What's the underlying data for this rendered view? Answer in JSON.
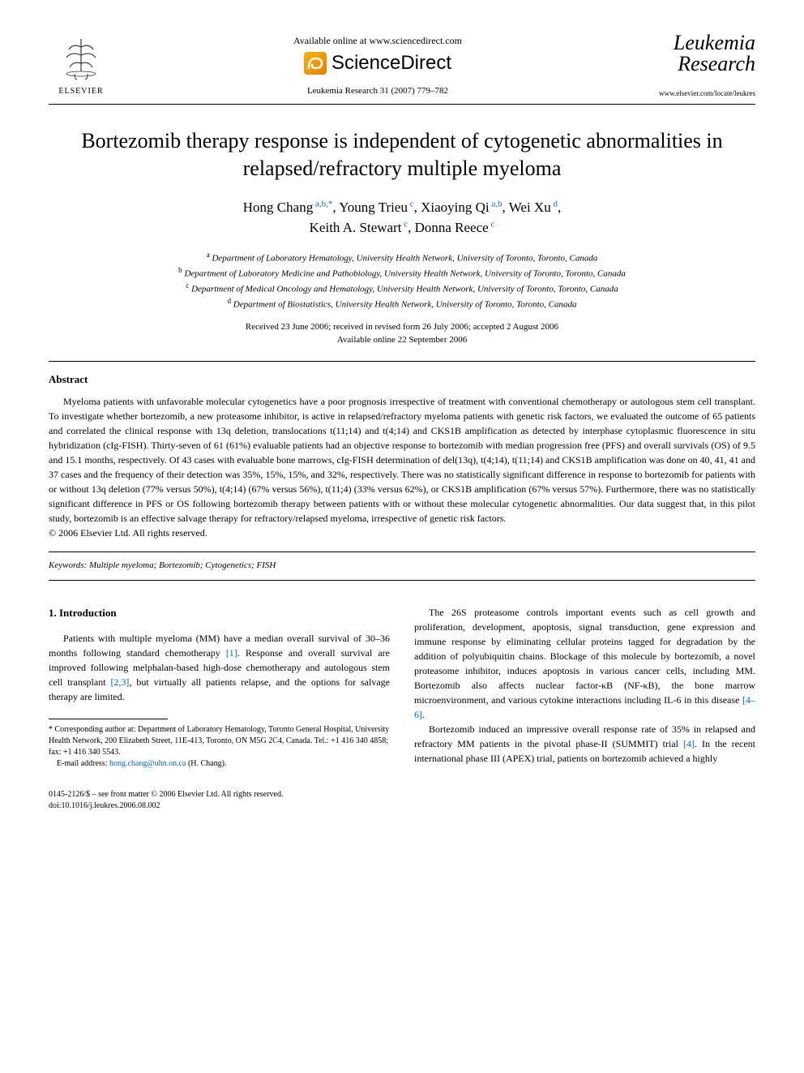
{
  "header": {
    "elsevier_label": "ELSEVIER",
    "available_text": "Available online at www.sciencedirect.com",
    "sd_brand": "ScienceDirect",
    "journal_ref": "Leukemia Research 31 (2007) 779–782",
    "journal_title_line1": "Leukemia",
    "journal_title_line2": "Research",
    "journal_url": "www.elsevier.com/locate/leukres"
  },
  "article": {
    "title": "Bortezomib therapy response is independent of cytogenetic abnormalities in relapsed/refractory multiple myeloma",
    "authors_html": "Hong Chang<sup> a,b,*</sup>, Young Trieu<sup> c</sup>, Xiaoying Qi<sup> a,b</sup>, Wei Xu<sup> d</sup>,<br>Keith A. Stewart<sup> c</sup>, Donna Reece<sup> c</sup>",
    "affiliations": {
      "a": "Department of Laboratory Hematology, University Health Network, University of Toronto, Toronto, Canada",
      "b": "Department of Laboratory Medicine and Pathobiology, University Health Network, University of Toronto, Toronto, Canada",
      "c": "Department of Medical Oncology and Hematology, University Health Network, University of Toronto, Toronto, Canada",
      "d": "Department of Biostatistics, University Health Network, University of Toronto, Toronto, Canada"
    },
    "dates_line1": "Received 23 June 2006; received in revised form 26 July 2006; accepted 2 August 2006",
    "dates_line2": "Available online 22 September 2006"
  },
  "abstract": {
    "heading": "Abstract",
    "text": "Myeloma patients with unfavorable molecular cytogenetics have a poor prognosis irrespective of treatment with conventional chemotherapy or autologous stem cell transplant. To investigate whether bortezomib, a new proteasome inhibitor, is active in relapsed/refractory myeloma patients with genetic risk factors, we evaluated the outcome of 65 patients and correlated the clinical response with 13q deletion, translocations t(11;14) and t(4;14) and CKS1B amplification as detected by interphase cytoplasmic fluorescence in situ hybridization (cIg-FISH). Thirty-seven of 61 (61%) evaluable patients had an objective response to bortezomib with median progression free (PFS) and overall survivals (OS) of 9.5 and 15.1 months, respectively. Of 43 cases with evaluable bone marrows, cIg-FISH determination of del(13q), t(4;14), t(11;14) and CKS1B amplification was done on 40, 41, 41 and 37 cases and the frequency of their detection was 35%, 15%, 15%, and 32%, respectively. There was no statistically significant difference in response to bortezomib for patients with or without 13q deletion (77% versus 50%), t(4;14) (67% versus 56%), t(11;4) (33% versus 62%), or CKS1B amplification (67% versus 57%). Furthermore, there was no statistically significant difference in PFS or OS following bortezomib therapy between patients with or without these molecular cytogenetic abnormalities. Our data suggest that, in this pilot study, bortezomib is an effective salvage therapy for refractory/relapsed myeloma, irrespective of genetic risk factors.",
    "copyright": "© 2006 Elsevier Ltd. All rights reserved."
  },
  "keywords": {
    "label": "Keywords:",
    "text": "Multiple myeloma; Bortezomib; Cytogenetics; FISH"
  },
  "body": {
    "section_heading": "1.  Introduction",
    "col1_p1": "Patients with multiple myeloma (MM) have a median overall survival of 30–36 months following standard chemotherapy [1]. Response and overall survival are improved following melphalan-based high-dose chemotherapy and autologous stem cell transplant [2,3], but virtually all patients relapse, and the options for salvage therapy are limited.",
    "col2_p1": "The 26S proteasome controls important events such as cell growth and proliferation, development, apoptosis, signal transduction, gene expression and immune response by eliminating cellular proteins tagged for degradation by the addition of polyubiquitin chains. Blockage of this molecule by bortezomib, a novel proteasome inhibitor, induces apoptosis in various cancer cells, including MM. Bortezomib also affects nuclear factor-κB (NF-κB), the bone marrow microenvironment, and various cytokine interactions including IL-6 in this disease [4–6].",
    "col2_p2": "Bortezomib induced an impressive overall response rate of 35% in relapsed and refractory MM patients in the pivotal phase-II (SUMMIT) trial [4]. In the recent international phase III (APEX) trial, patients on bortezomib achieved a highly"
  },
  "footnote": {
    "corr": "* Corresponding author at: Department of Laboratory Hematology, Toronto General Hospital, University Health Network, 200 Elizabeth Street, 11E-413, Toronto, ON M5G 2C4, Canada. Tel.: +1 416 340 4858; fax: +1 416 340 5543.",
    "email_label": "E-mail address:",
    "email": "hong.chang@uhn.on.ca",
    "email_author": "(H. Chang)."
  },
  "doi": {
    "line1": "0145-2126/$ – see front matter © 2006 Elsevier Ltd. All rights reserved.",
    "line2": "doi:10.1016/j.leukres.2006.08.002"
  },
  "colors": {
    "link": "#0066cc",
    "text": "#000000",
    "background": "#ffffff"
  }
}
